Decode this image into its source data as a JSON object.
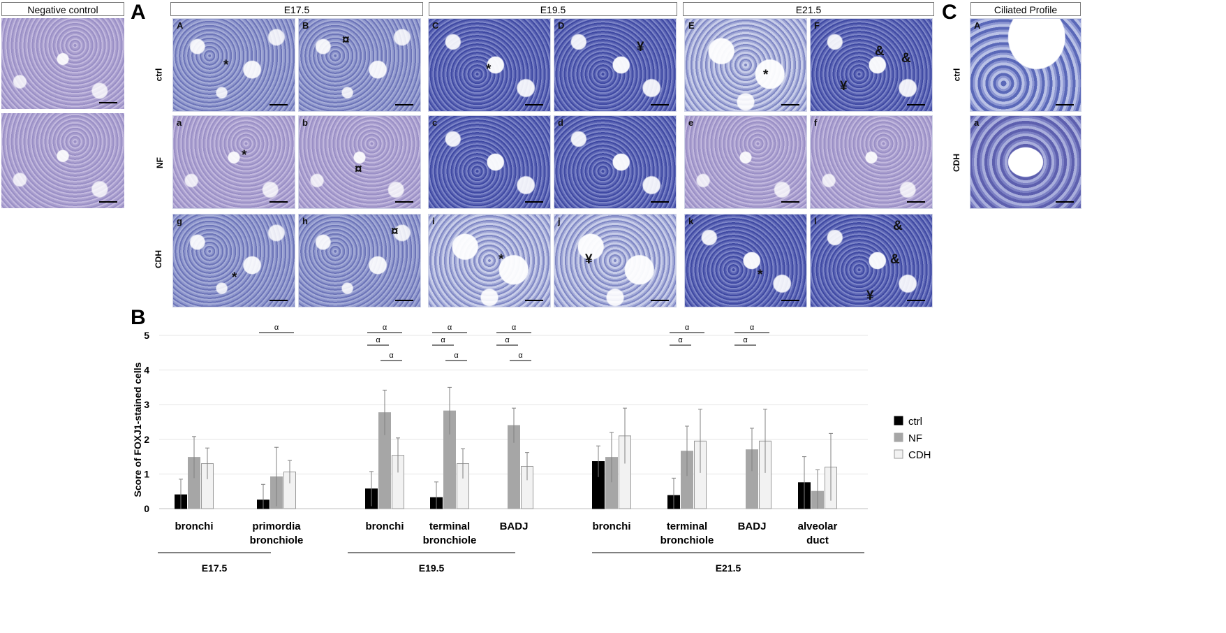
{
  "negative_control": {
    "title": "Negative control"
  },
  "panelA": {
    "letter": "A",
    "stages": [
      "E17.5",
      "E19.5",
      "E21.5"
    ],
    "rows": [
      "ctrl",
      "NF",
      "CDH"
    ],
    "subpanels": {
      "ctrl": [
        "A",
        "B",
        "C",
        "D",
        "E",
        "F"
      ],
      "NF": [
        "a",
        "b",
        "c",
        "d",
        "e",
        "f"
      ],
      "CDH": [
        "g",
        "h",
        "i",
        "j",
        "k",
        "l"
      ]
    },
    "markers": {
      "asterisk": "*",
      "square": "¤",
      "yen": "¥",
      "amp": "&"
    }
  },
  "panelC": {
    "letter": "C",
    "title": "Ciliated Profile",
    "rows": [
      "ctrl",
      "CDH"
    ],
    "subpanels": [
      "A",
      "a"
    ]
  },
  "panelB": {
    "letter": "B"
  },
  "chart_data": {
    "type": "bar",
    "ylabel": "Score of FOXJ1-stained cells",
    "ylim": [
      0,
      5
    ],
    "yticks": [
      0,
      1,
      2,
      3,
      4,
      5
    ],
    "legend_position": "right",
    "series_names": [
      "ctrl",
      "NF",
      "CDH"
    ],
    "colors": {
      "ctrl": "#000000",
      "NF": "#a6a6a6",
      "CDH": "#f2f2f2"
    },
    "significance_symbol": "α",
    "groups": [
      {
        "stage": "E17.5",
        "categories": [
          {
            "label": [
              "bronchi"
            ],
            "values": [
              0.4,
              1.48,
              1.3
            ],
            "errors": [
              0.45,
              0.6,
              0.45
            ]
          },
          {
            "label": [
              "primordia",
              "bronchiole"
            ],
            "values": [
              0.25,
              0.92,
              1.06
            ],
            "errors": [
              0.45,
              0.85,
              0.33
            ]
          }
        ]
      },
      {
        "stage": "E19.5",
        "categories": [
          {
            "label": [
              "bronchi"
            ],
            "values": [
              0.57,
              2.77,
              1.54
            ],
            "errors": [
              0.5,
              0.65,
              0.5
            ]
          },
          {
            "label": [
              "terminal",
              "bronchiole"
            ],
            "values": [
              0.32,
              2.82,
              1.3
            ],
            "errors": [
              0.45,
              0.68,
              0.43
            ]
          },
          {
            "label": [
              "BADJ"
            ],
            "values": [
              null,
              2.4,
              1.22
            ],
            "errors": [
              null,
              0.5,
              0.4
            ]
          }
        ]
      },
      {
        "stage": "E21.5",
        "categories": [
          {
            "label": [
              "bronchi"
            ],
            "values": [
              1.36,
              1.48,
              2.1
            ],
            "errors": [
              0.45,
              0.72,
              0.8
            ]
          },
          {
            "label": [
              "terminal",
              "bronchiole"
            ],
            "values": [
              0.38,
              1.66,
              1.95
            ],
            "errors": [
              0.5,
              0.72,
              0.92
            ]
          },
          {
            "label": [
              "BADJ"
            ],
            "values": [
              null,
              1.7,
              1.95
            ],
            "errors": [
              null,
              0.62,
              0.92
            ]
          },
          {
            "label": [
              "alveolar",
              "duct"
            ],
            "values": [
              0.75,
              0.5,
              1.2
            ],
            "errors": [
              0.75,
              0.62,
              0.97
            ]
          }
        ]
      }
    ],
    "significance": [
      {
        "group": 0,
        "cat": 1,
        "pairs": [
          [
            0,
            2
          ]
        ]
      },
      {
        "group": 1,
        "cat": 0,
        "pairs": [
          [
            0,
            2
          ],
          [
            0,
            1
          ],
          [
            1,
            2
          ]
        ]
      },
      {
        "group": 1,
        "cat": 1,
        "pairs": [
          [
            0,
            2
          ],
          [
            0,
            1
          ],
          [
            1,
            2
          ]
        ]
      },
      {
        "group": 1,
        "cat": 2,
        "pairs": [
          [
            0,
            2
          ],
          [
            0,
            1
          ],
          [
            1,
            2
          ]
        ]
      },
      {
        "group": 2,
        "cat": 1,
        "pairs": [
          [
            0,
            2
          ],
          [
            0,
            1
          ]
        ]
      },
      {
        "group": 2,
        "cat": 2,
        "pairs": [
          [
            0,
            2
          ],
          [
            0,
            1
          ]
        ]
      }
    ]
  }
}
